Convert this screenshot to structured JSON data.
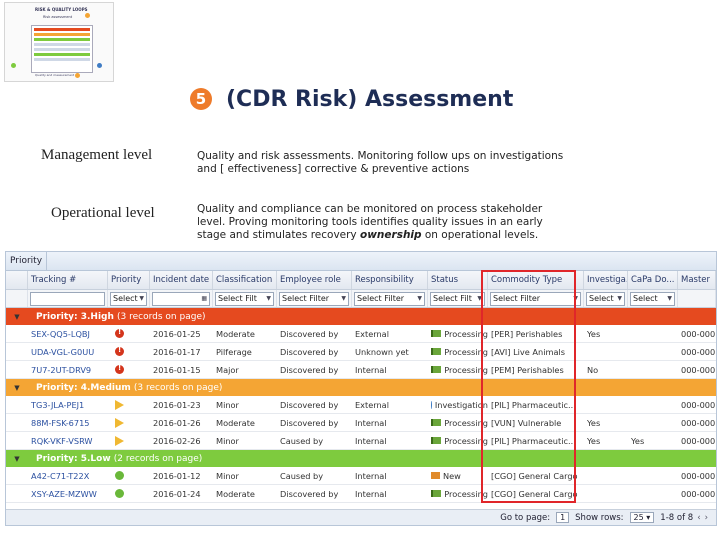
{
  "thumbnail": {
    "title": "RISK & QUALITY LOOPS",
    "subtitle": "Risk assessment",
    "line": "Quality and measurement",
    "colors": [
      "#e54a1f",
      "#f4a534",
      "#7ecb3e",
      "#3f7cc4"
    ]
  },
  "slide": {
    "step_number": "5",
    "title": "(CDR Risk) Assessment",
    "management_label": "Management level",
    "management_desc_1": "Quality and risk assessments. Monitoring follow ups on investigations",
    "management_desc_2": "and [ effectiveness] corrective & preventive actions",
    "operational_label": "Operational level",
    "operational_desc_1": "Quality and compliance can be monitored on process stakeholder",
    "operational_desc_2": "level. Proving monitoring tools identifies quality issues in an early",
    "operational_desc_3a": "stage and stimulates recovery ",
    "operational_desc_3b": "ownership",
    "operational_desc_3c": " on operational levels."
  },
  "grid": {
    "tab": "Priority",
    "columns": [
      "Tracking #",
      "Priority",
      "Incident date",
      "Classification",
      "Employee role",
      "Responsibility",
      "Status",
      "Commodity Type",
      "Investiga..",
      "CaPa Do...",
      "Master"
    ],
    "filters": [
      "",
      "Select",
      "",
      "Select Filt",
      "Select Filter",
      "Select Filter",
      "Select Filt",
      "Select Filter",
      "Select",
      "Select",
      ""
    ],
    "groups": [
      {
        "label": "Priority: 3.High",
        "count": "(3 records on page)",
        "rows": [
          {
            "tracking": "SEX-QQ5-LQBJ",
            "date": "2016-01-25",
            "class": "Moderate",
            "role": "Discovered by",
            "resp": "External",
            "status": "Processing",
            "commodity": "[PER] Perishables",
            "inv": "Yes",
            "capa": "",
            "master": "000-000"
          },
          {
            "tracking": "UDA-VGL-G0UU",
            "date": "2016-01-17",
            "class": "Pilferage",
            "role": "Discovered by",
            "resp": "Unknown yet",
            "status": "Processing",
            "commodity": "[AVI] Live Animals",
            "inv": "",
            "capa": "",
            "master": "000-000"
          },
          {
            "tracking": "7U7-2UT-DRV9",
            "date": "2016-01-15",
            "class": "Major",
            "role": "Discovered by",
            "resp": "Internal",
            "status": "Processing",
            "commodity": "[PEM] Perishables",
            "inv": "No",
            "capa": "",
            "master": "000-000"
          }
        ]
      },
      {
        "label": "Priority: 4.Medium",
        "count": "(3 records on page)",
        "rows": [
          {
            "tracking": "TG3-JLA-PEJ1",
            "date": "2016-01-23",
            "class": "Minor",
            "role": "Discovered by",
            "resp": "External",
            "status": "Investigation",
            "commodity": "[PIL] Pharmaceutic...",
            "inv": "",
            "capa": "",
            "master": "000-000"
          },
          {
            "tracking": "88M-FSK-6715",
            "date": "2016-01-26",
            "class": "Moderate",
            "role": "Discovered by",
            "resp": "Internal",
            "status": "Processing",
            "commodity": "[VUN] Vulnerable",
            "inv": "Yes",
            "capa": "",
            "master": "000-000"
          },
          {
            "tracking": "RQK-VKF-VSRW",
            "date": "2016-02-26",
            "class": "Minor",
            "role": "Caused by",
            "resp": "Internal",
            "status": "Processing",
            "commodity": "[PIL] Pharmaceutic...",
            "inv": "Yes",
            "capa": "Yes",
            "master": "000-000"
          }
        ]
      },
      {
        "label": "Priority: 5.Low",
        "count": "(2 records on page)",
        "rows": [
          {
            "tracking": "A42-C71-T22X",
            "date": "2016-01-12",
            "class": "Minor",
            "role": "Caused by",
            "resp": "Internal",
            "status": "New",
            "commodity": "[CGO] General Cargo",
            "inv": "",
            "capa": "",
            "master": "000-000"
          },
          {
            "tracking": "XSY-AZE-MZWW",
            "date": "2016-01-24",
            "class": "Moderate",
            "role": "Discovered by",
            "resp": "Internal",
            "status": "Processing",
            "commodity": "[CGO] General Cargo",
            "inv": "",
            "capa": "",
            "master": "000-000"
          }
        ]
      }
    ],
    "pager": {
      "goto_label": "Go to page:",
      "page_value": "1",
      "show_rows_label": "Show rows:",
      "rows_value": "25",
      "range": "1-8 of 8"
    }
  }
}
